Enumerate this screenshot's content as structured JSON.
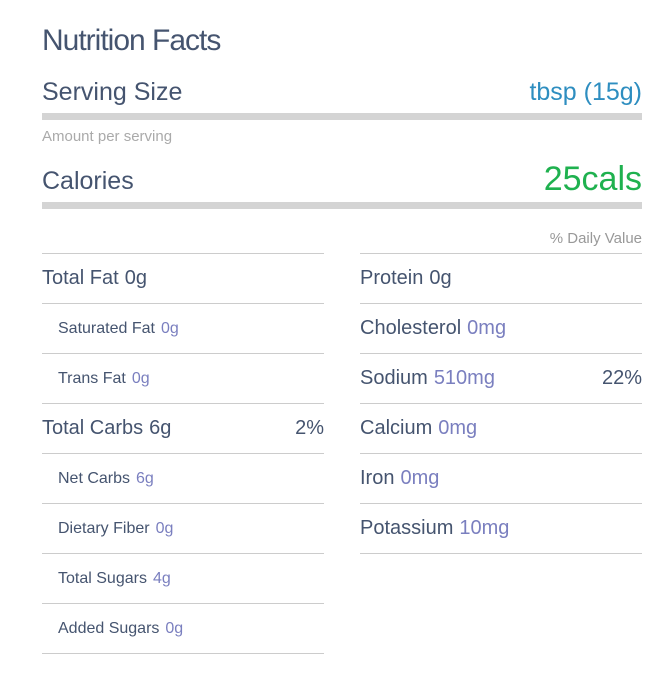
{
  "title": "Nutrition Facts",
  "serving_size": {
    "label": "Serving Size",
    "value": "tbsp (15g)"
  },
  "amount_per_serving": "Amount per serving",
  "calories": {
    "label": "Calories",
    "value": "25cals"
  },
  "daily_value_header": "% Daily Value",
  "left_rows": [
    {
      "name": "Total Fat",
      "amount": "0g"
    },
    {
      "name": "Saturated Fat",
      "amount": "0g"
    },
    {
      "name": "Trans Fat",
      "amount": "0g"
    },
    {
      "name": "Total Carbs",
      "amount": "6g",
      "daily_value": "2%"
    },
    {
      "name": "Net Carbs",
      "amount": "6g"
    },
    {
      "name": "Dietary Fiber",
      "amount": "0g"
    },
    {
      "name": "Total Sugars",
      "amount": "4g"
    },
    {
      "name": "Added Sugars",
      "amount": "0g"
    }
  ],
  "right_rows": [
    {
      "name": "Protein",
      "amount": "0g"
    },
    {
      "name": "Cholesterol",
      "amount": "0mg"
    },
    {
      "name": "Sodium",
      "amount": "510mg",
      "daily_value": "22%"
    },
    {
      "name": "Calcium",
      "amount": "0mg"
    },
    {
      "name": "Iron",
      "amount": "0mg"
    },
    {
      "name": "Potassium",
      "amount": "10mg"
    }
  ]
}
